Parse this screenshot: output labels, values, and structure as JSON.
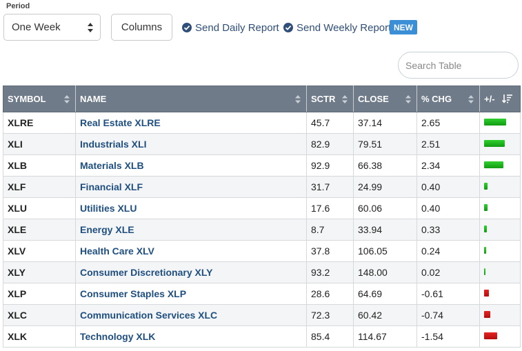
{
  "controls": {
    "period_label": "Period",
    "period_value": "One Week",
    "columns_label": "Columns",
    "daily_report_label": "Send Daily Report",
    "weekly_report_label": "Send Weekly Report",
    "new_badge": "NEW",
    "search_placeholder": "Search Table"
  },
  "table": {
    "headers": {
      "symbol": "SYMBOL",
      "name": "NAME",
      "sctr": "SCTR",
      "close": "CLOSE",
      "pct_chg": "% CHG",
      "plus_minus": "+/-"
    },
    "bar_max_abs_pct_chg": 2.65,
    "rows": [
      {
        "symbol": "XLRE",
        "name": "Real Estate XLRE",
        "sctr": "45.7",
        "close": "37.14",
        "pct_chg": "2.65"
      },
      {
        "symbol": "XLI",
        "name": "Industrials XLI",
        "sctr": "82.9",
        "close": "79.51",
        "pct_chg": "2.51"
      },
      {
        "symbol": "XLB",
        "name": "Materials XLB",
        "sctr": "92.9",
        "close": "66.38",
        "pct_chg": "2.34"
      },
      {
        "symbol": "XLF",
        "name": "Financial XLF",
        "sctr": "31.7",
        "close": "24.99",
        "pct_chg": "0.40"
      },
      {
        "symbol": "XLU",
        "name": "Utilities XLU",
        "sctr": "17.6",
        "close": "60.06",
        "pct_chg": "0.40"
      },
      {
        "symbol": "XLE",
        "name": "Energy XLE",
        "sctr": "8.7",
        "close": "33.94",
        "pct_chg": "0.33"
      },
      {
        "symbol": "XLV",
        "name": "Health Care XLV",
        "sctr": "37.8",
        "close": "106.05",
        "pct_chg": "0.24"
      },
      {
        "symbol": "XLY",
        "name": "Consumer Discretionary XLY",
        "sctr": "93.2",
        "close": "148.00",
        "pct_chg": "0.02"
      },
      {
        "symbol": "XLP",
        "name": "Consumer Staples XLP",
        "sctr": "28.6",
        "close": "64.69",
        "pct_chg": "-0.61"
      },
      {
        "symbol": "XLC",
        "name": "Communication Services XLC",
        "sctr": "72.3",
        "close": "60.42",
        "pct_chg": "-0.74"
      },
      {
        "symbol": "XLK",
        "name": "Technology XLK",
        "sctr": "85.4",
        "close": "114.67",
        "pct_chg": "-1.54"
      }
    ]
  },
  "colors": {
    "header_bg": "#6f7b89",
    "link": "#1f4f80",
    "positive_bar": "#1fb81f",
    "negative_bar": "#d01a1a",
    "badge": "#3b8fd6"
  }
}
